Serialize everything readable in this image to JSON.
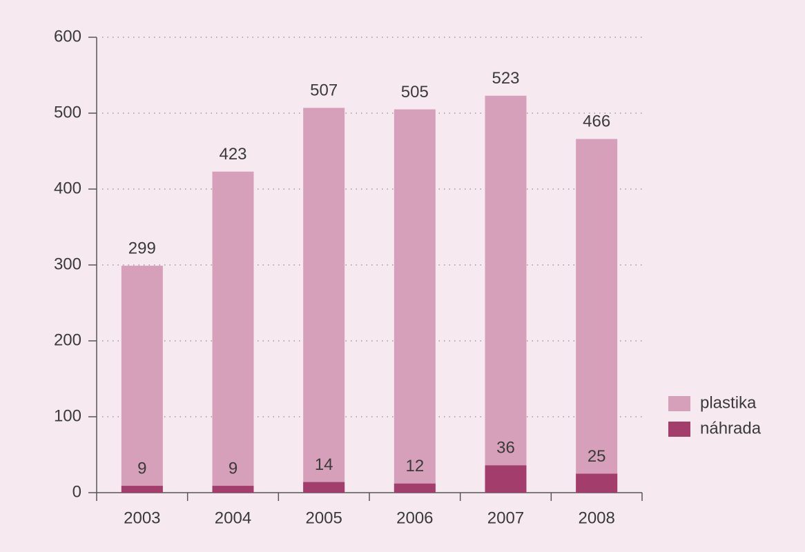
{
  "chart_data": {
    "type": "bar",
    "overlap": true,
    "categories": [
      "2003",
      "2004",
      "2005",
      "2006",
      "2007",
      "2008"
    ],
    "series": [
      {
        "name": "plastika",
        "color": "#d7a0ba",
        "values": [
          299,
          423,
          507,
          505,
          523,
          466
        ]
      },
      {
        "name": "náhrada",
        "color": "#a23d6c",
        "values": [
          9,
          9,
          14,
          12,
          36,
          25
        ]
      }
    ],
    "ylim": [
      0,
      600
    ],
    "yticks": [
      0,
      100,
      200,
      300,
      400,
      500,
      600
    ],
    "grid": true,
    "legend": "right"
  }
}
